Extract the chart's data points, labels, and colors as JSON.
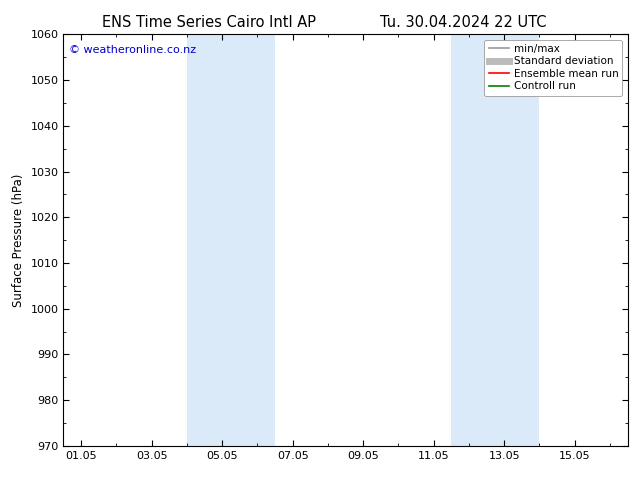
{
  "title_left": "ENS Time Series Cairo Intl AP",
  "title_right": "Tu. 30.04.2024 22 UTC",
  "ylabel": "Surface Pressure (hPa)",
  "ylim": [
    970,
    1060
  ],
  "yticks": [
    970,
    980,
    990,
    1000,
    1010,
    1020,
    1030,
    1040,
    1050,
    1060
  ],
  "xtick_labels": [
    "01.05",
    "03.05",
    "05.05",
    "07.05",
    "09.05",
    "11.05",
    "13.05",
    "15.05"
  ],
  "xtick_positions": [
    0,
    2,
    4,
    6,
    8,
    10,
    12,
    14
  ],
  "xlim": [
    -0.5,
    15.5
  ],
  "shaded_bands": [
    {
      "x_start": 3.0,
      "x_end": 5.5,
      "color": "#daeaf8"
    },
    {
      "x_start": 10.5,
      "x_end": 13.0,
      "color": "#daeaf8"
    }
  ],
  "watermark": "© weatheronline.co.nz",
  "watermark_color": "#0000cc",
  "bg_color": "#ffffff",
  "legend_items": [
    {
      "label": "min/max",
      "color": "#999999",
      "lw": 1.2,
      "style": "-"
    },
    {
      "label": "Standard deviation",
      "color": "#bbbbbb",
      "lw": 5,
      "style": "-"
    },
    {
      "label": "Ensemble mean run",
      "color": "#ff0000",
      "lw": 1.2,
      "style": "-"
    },
    {
      "label": "Controll run",
      "color": "#008000",
      "lw": 1.2,
      "style": "-"
    }
  ],
  "title_fontsize": 10.5,
  "ylabel_fontsize": 8.5,
  "tick_fontsize": 8,
  "legend_fontsize": 7.5,
  "watermark_fontsize": 8
}
